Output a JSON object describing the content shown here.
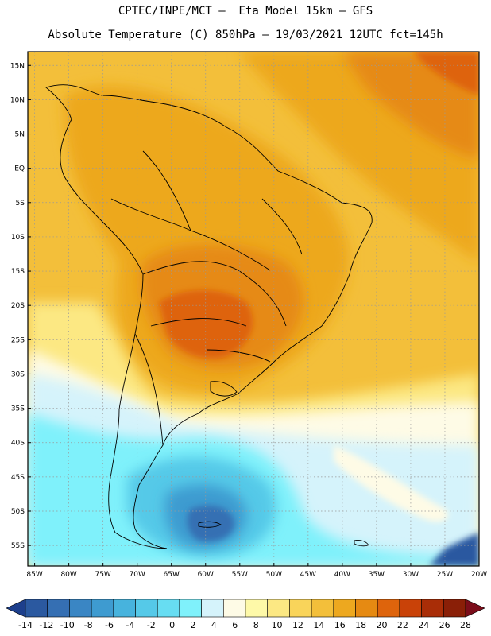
{
  "header": {
    "line1": "CPTEC/INPE/MCT –  Eta Model 15km – GFS",
    "line2": "Absolute Temperature (C) 850hPa – 19/03/2021 12UTC fct=145h"
  },
  "map": {
    "lat_range": [
      -58,
      17
    ],
    "lon_range": [
      -86,
      -20
    ],
    "lat_labels": [
      "15N",
      "10N",
      "5N",
      "EQ",
      "5S",
      "10S",
      "15S",
      "20S",
      "25S",
      "30S",
      "35S",
      "40S",
      "45S",
      "50S",
      "55S"
    ],
    "lon_labels": [
      "85W",
      "80W",
      "75W",
      "70W",
      "65W",
      "60W",
      "55W",
      "50W",
      "45W",
      "40W",
      "35W",
      "30W",
      "25W",
      "20W"
    ],
    "gridlines": "dotted"
  },
  "colorbar": {
    "levels": [
      "-14",
      "-12",
      "-10",
      "-8",
      "-6",
      "-4",
      "-2",
      "0",
      "2",
      "4",
      "6",
      "8",
      "10",
      "12",
      "14",
      "16",
      "18",
      "20",
      "22",
      "24",
      "26",
      "28"
    ],
    "colors": [
      "#1d3f8c",
      "#2b59a0",
      "#356fb3",
      "#3a86c4",
      "#3e9bd0",
      "#47b3dd",
      "#55c9e8",
      "#67ddf2",
      "#7ff1fb",
      "#d5f3fb",
      "#fefbe6",
      "#fef9a8",
      "#fce883",
      "#f9d45a",
      "#f3bf3a",
      "#eda81f",
      "#e68a12",
      "#de640c",
      "#c94208",
      "#a92d07",
      "#8a1f07",
      "#7b0d1a"
    ]
  }
}
